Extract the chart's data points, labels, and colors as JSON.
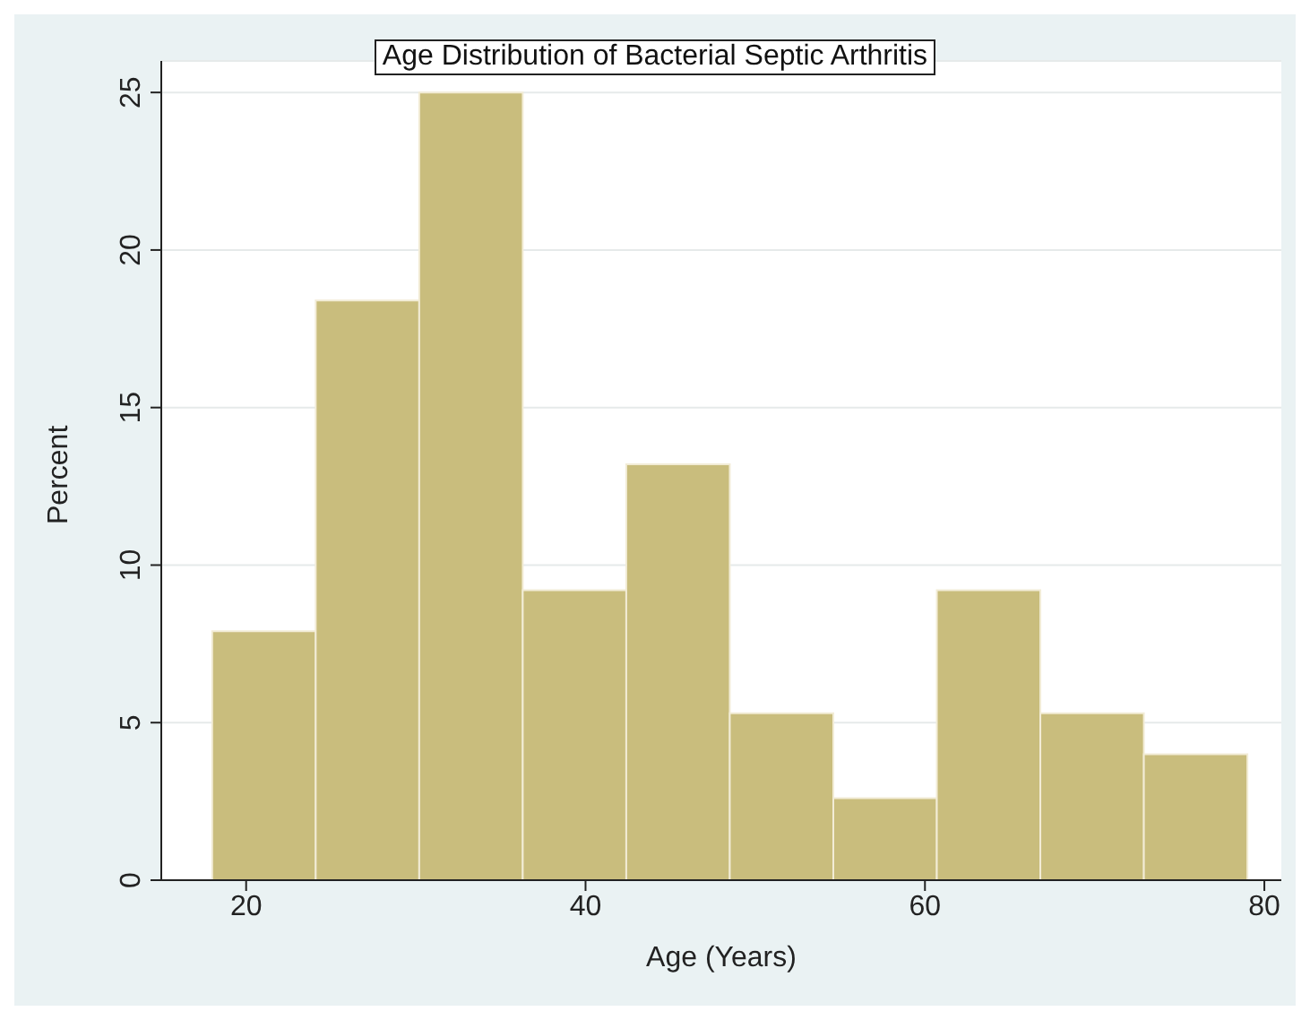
{
  "chart_data": {
    "type": "histogram",
    "title": "Age Distribution of Bacterial Septic Arthritis",
    "xlabel": "Age (Years)",
    "ylabel": "Percent",
    "bins": [
      18,
      24.1,
      30.2,
      36.3,
      42.4,
      48.5,
      54.6,
      60.7,
      66.8,
      72.9,
      79
    ],
    "values": [
      7.9,
      18.4,
      25,
      9.2,
      13.2,
      5.3,
      2.6,
      9.2,
      5.3,
      4.0
    ],
    "color": "#c9bd7d",
    "xlim": [
      15,
      81
    ],
    "xticks": [
      20,
      40,
      60,
      80
    ],
    "ylim": [
      0,
      26
    ],
    "yticks": [
      0,
      5,
      10,
      15,
      20,
      25
    ],
    "grid": "y"
  }
}
